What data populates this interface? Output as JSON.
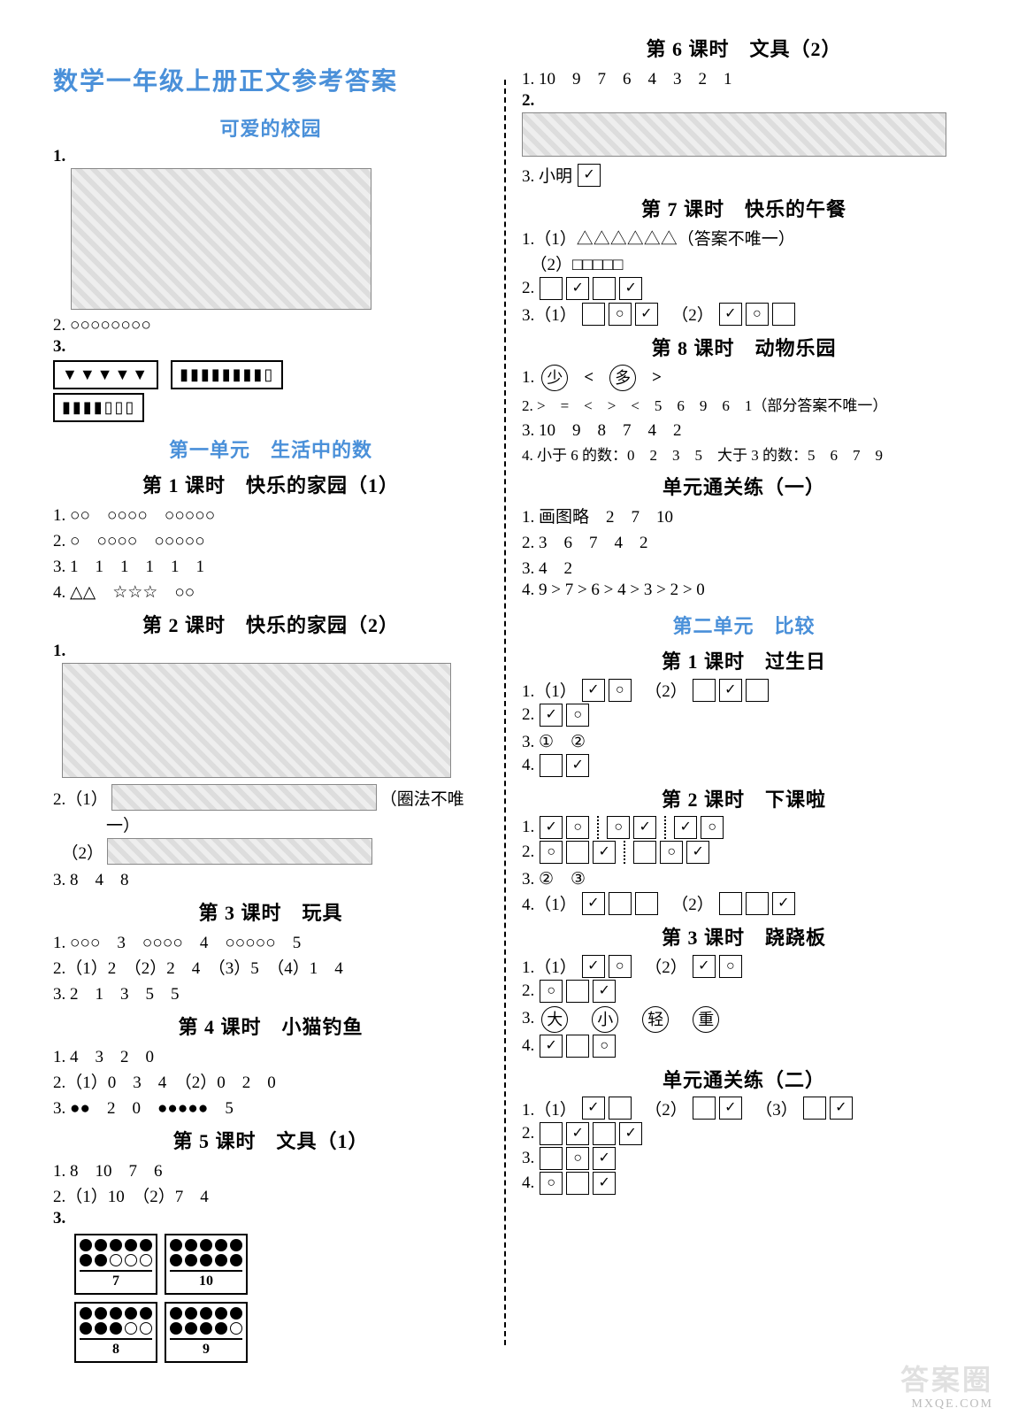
{
  "main_title": "数学一年级上册正文参考答案",
  "left": {
    "sec0_title": "可爱的校园",
    "q1": "1.",
    "q2": "2. ○○○○○○○○",
    "q3": "3.",
    "unit1_title": "第一单元　生活中的数",
    "l1_title": "第 1 课时　快乐的家园（1）",
    "l1_q1": "1. ○○　○○○○　○○○○○",
    "l1_q2": "2. ○　○○○○　○○○○○",
    "l1_q3": "3. 1　1　1　1　1　1",
    "l1_q4": "4. △△　☆☆☆　○○",
    "l2_title": "第 2 课时　快乐的家园（2）",
    "l2_q1": "1.",
    "l2_q2a": "2.（1）",
    "l2_q2a_tail": "（圈法不唯",
    "l2_q2a_tail2": "一）",
    "l2_q2b": "　（2）",
    "l2_q3": "3. 8　4　8",
    "l3_title": "第 3 课时　玩具",
    "l3_q1": "1. ○○○　3　○○○○　4　○○○○○　5",
    "l3_q2": "2.（1）2　（2）2　4　（3）5　（4）1　4",
    "l3_q3": "3. 2　1　3　5　5",
    "l4_title": "第 4 课时　小猫钓鱼",
    "l4_q1": "1. 4　3　2　0",
    "l4_q2": "2.（1）0　3　4　（2）0　2　0",
    "l4_q3": "3. ●●　2　0　●●●●●　5",
    "l5_title": "第 5 课时　文具（1）",
    "l5_q1": "1. 8　10　7　6",
    "l5_q2": "2.（1）10　（2）7　4",
    "l5_q3": "3.",
    "dotblocks": [
      {
        "filled": 7,
        "total": 10,
        "label": "7"
      },
      {
        "filled": 10,
        "total": 10,
        "label": "10"
      },
      {
        "filled": 8,
        "total": 10,
        "label": "8"
      },
      {
        "filled": 9,
        "total": 10,
        "label": "9"
      }
    ]
  },
  "right": {
    "l6_title": "第 6 课时　文具（2）",
    "l6_q1": "1. 10　9　7　6　4　3　2　1",
    "l6_q2": "2.",
    "l6_q3": "3. 小明",
    "l7_title": "第 7 课时　快乐的午餐",
    "l7_q1a": "1.（1）△△△△△△（答案不唯一）",
    "l7_q1b": "　（2）□□□□□",
    "l7_q2": "2.",
    "l7_q2_boxes": [
      "",
      "✓",
      "",
      "✓"
    ],
    "l7_q3": "3.（1）",
    "l7_q3_1": [
      "",
      "○",
      "✓"
    ],
    "l7_q3_mid": "　（2）",
    "l7_q3_2": [
      "✓",
      "○",
      ""
    ],
    "l8_title": "第 8 课时　动物乐园",
    "l8_q1": "1.",
    "l8_q1_c1": "少",
    "l8_q1_s1": "<",
    "l8_q1_c2": "多",
    "l8_q1_s2": ">",
    "l8_q2": "2. >　=　<　>　<　5　6　9　6　1（部分答案不唯一）",
    "l8_q3": "3. 10　9　8　7　4　2",
    "l8_q4": "4. 小于 6 的数：0　2　3　5　大于 3 的数：5　6　7　9",
    "p1_title": "单元通关练（一）",
    "p1_q1": "1. 画图略　2　7　10",
    "p1_q2": "2. 3　6　7　4　2",
    "p1_q3": "3. 4　2",
    "p1_q4": "4. 9 > 7 > 6 > 4 > 3 > 2 > 0",
    "unit2_title": "第二单元　比较",
    "u2l1_title": "第 1 课时　过生日",
    "u2l1_q1": "1.（1）",
    "u2l1_q1_1": [
      "✓",
      "○"
    ],
    "u2l1_q1_mid": "　（2）",
    "u2l1_q1_2": [
      "",
      "✓",
      ""
    ],
    "u2l1_q2": "2.",
    "u2l1_q2_boxes": [
      "✓",
      "○"
    ],
    "u2l1_q3": "3. ①　②",
    "u2l1_q4": "4.",
    "u2l1_q4_boxes": [
      "",
      "✓"
    ],
    "u2l2_title": "第 2 课时　下课啦",
    "u2l2_q1": "1.",
    "u2l2_q1_a": [
      "✓",
      "○"
    ],
    "u2l2_q1_b": [
      "○",
      "✓"
    ],
    "u2l2_q1_c": [
      "✓",
      "○"
    ],
    "u2l2_q2": "2.",
    "u2l2_q2_a": [
      "○",
      "",
      "✓"
    ],
    "u2l2_q2_b": [
      "",
      "○",
      "✓"
    ],
    "u2l2_q3": "3. ②　③",
    "u2l2_q4": "4.（1）",
    "u2l2_q4_1": [
      "✓",
      "",
      ""
    ],
    "u2l2_q4_mid": "　（2）",
    "u2l2_q4_2": [
      "",
      "",
      "✓"
    ],
    "u2l3_title": "第 3 课时　跷跷板",
    "u2l3_q1": "1.（1）",
    "u2l3_q1_1": [
      "✓",
      "○"
    ],
    "u2l3_q1_mid": "　（2）",
    "u2l3_q1_2": [
      "✓",
      "○"
    ],
    "u2l3_q2": "2.",
    "u2l3_q2_boxes": [
      "○",
      "",
      "✓"
    ],
    "u2l3_q3": "3.",
    "u2l3_q3_c": [
      "大",
      "小",
      "轻",
      "重"
    ],
    "u2l3_q4": "4.",
    "u2l3_q4_boxes": [
      "✓",
      "",
      "○"
    ],
    "p2_title": "单元通关练（二）",
    "p2_q1": "1.（1）",
    "p2_q1_1": [
      "✓",
      ""
    ],
    "p2_q1_m1": "　（2）",
    "p2_q1_2": [
      "",
      "✓"
    ],
    "p2_q1_m2": "　（3）",
    "p2_q1_3": [
      "",
      "✓"
    ],
    "p2_q2": "2.",
    "p2_q2_boxes": [
      "",
      "✓",
      "",
      "✓"
    ],
    "p2_q3": "3.",
    "p2_q3_boxes": [
      "",
      "○",
      "✓"
    ],
    "p2_q4": "4.",
    "p2_q4_boxes": [
      "○",
      "",
      "✓"
    ]
  },
  "watermark": "答案圈",
  "site": "MXQE.COM"
}
